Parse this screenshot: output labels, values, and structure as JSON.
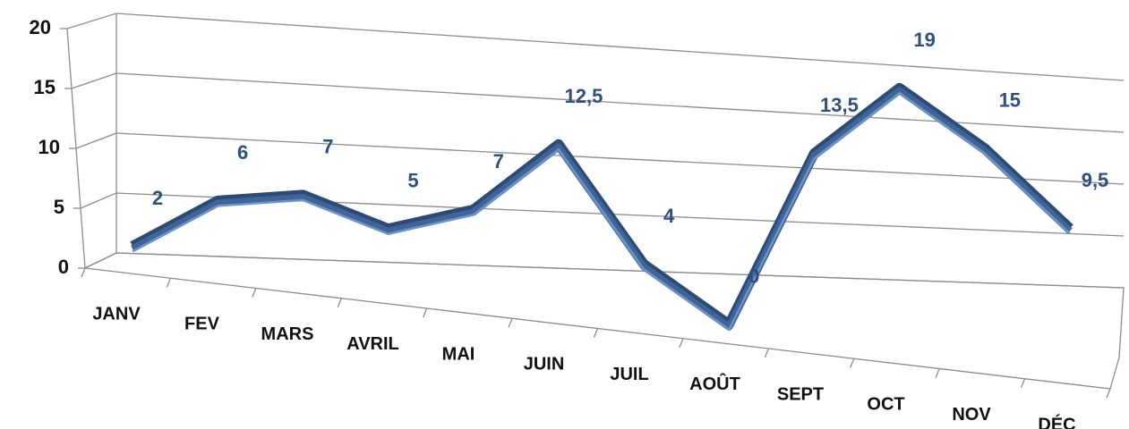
{
  "chart_data": {
    "type": "line",
    "categories": [
      "JANV",
      "FEV",
      "MARS",
      "AVRIL",
      "MAI",
      "JUIN",
      "JUIL",
      "AOÛT",
      "SEPT",
      "OCT",
      "NOV",
      "DÉC"
    ],
    "series": [
      {
        "color": "#3f6497",
        "values": [
          2,
          6,
          7,
          5,
          7,
          12.5,
          4,
          0,
          13.5,
          19,
          15,
          9.5
        ],
        "value_labels": [
          "2",
          "6",
          "7",
          "5",
          "7",
          "12,5",
          "4",
          "0",
          "13,5",
          "19",
          "15",
          "9,5"
        ]
      }
    ],
    "ylim": [
      0,
      20
    ],
    "yticks": [
      0,
      5,
      10,
      15,
      20
    ],
    "grid": true
  }
}
